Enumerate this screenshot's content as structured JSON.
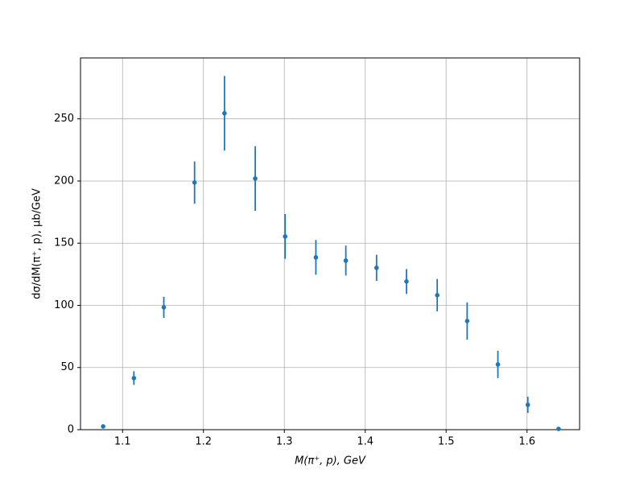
{
  "chart_data": {
    "type": "errorbar",
    "xlabel": "M(π⁺, p), GeV",
    "ylabel": "dσ/dM(π⁺, p), μb/GeV",
    "x": [
      1.076,
      1.114,
      1.151,
      1.189,
      1.226,
      1.264,
      1.301,
      1.339,
      1.376,
      1.414,
      1.451,
      1.489,
      1.526,
      1.564,
      1.601,
      1.639
    ],
    "values": [
      2.6,
      41.5,
      98.4,
      198.8,
      254.5,
      202,
      155.4,
      138.6,
      136,
      130.2,
      119.2,
      108.2,
      87.4,
      52.5,
      20,
      0.6
    ],
    "errors": [
      0.5,
      5.5,
      8.5,
      17,
      30,
      26,
      18,
      14,
      12,
      10.5,
      10,
      13,
      15,
      11,
      6.5,
      0.5
    ],
    "color": "#1f77b4",
    "xlim": [
      1.048,
      1.665
    ],
    "ylim": [
      0,
      299
    ],
    "xticks": [
      1.1,
      1.2,
      1.3,
      1.4,
      1.5,
      1.6
    ],
    "yticks": [
      0,
      50,
      100,
      150,
      200,
      250
    ],
    "grid": true
  }
}
